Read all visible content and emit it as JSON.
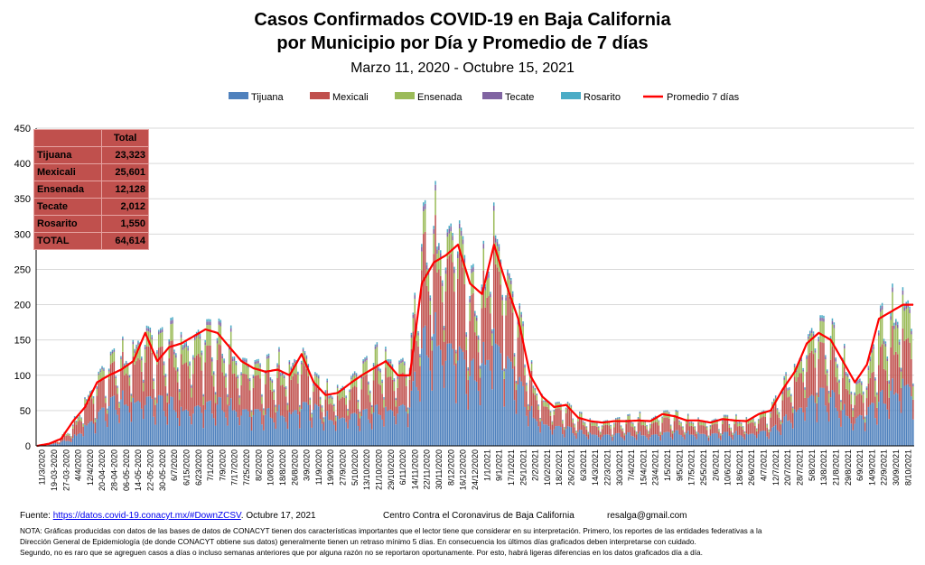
{
  "chart_data": {
    "type": "bar",
    "stacked": true,
    "title_line1": "Casos Confirmados COVID-19 en Baja California",
    "title_line2": "por Municipio por Día y Promedio de 7 días",
    "subtitle": "Marzo 11, 2020  - Octubre 15, 2021",
    "ylim": [
      0,
      450
    ],
    "yticks": [
      "0",
      "50",
      "100",
      "150",
      "200",
      "250",
      "300",
      "350",
      "400",
      "450"
    ],
    "grid": true,
    "legend_placement": "top",
    "x_tick_labels": [
      "11/3/2020",
      "19-03-2020",
      "27-03-2020",
      "4/4/2020",
      "12/4/2020",
      "20-04-2020",
      "28-04-2020",
      "06-05-2020",
      "14-05-2020",
      "22-05-2020",
      "30-05-2020",
      "6/7/2020",
      "6/15/2020",
      "6/23/2020",
      "7/1/2020",
      "7/9/2020",
      "7/17/2020",
      "7/25/2020",
      "8/2/2020",
      "10/8/2020",
      "18/8/2020",
      "26/8/2020",
      "3/9/2020",
      "11/9/2020",
      "19/9/2020",
      "27/9/2020",
      "5/10/2020",
      "13/10/2020",
      "21/10/2020",
      "29/10/2020",
      "6/11/2020",
      "14/11/2020",
      "22/11/2020",
      "30/11/2020",
      "8/12/2020",
      "16/12/2020",
      "24/12/2020",
      "1/1/2021",
      "9/1/2021",
      "17/1/2021",
      "25/1/2021",
      "2/2/2021",
      "10/2/2021",
      "18/2/2021",
      "26/2/2021",
      "6/3/2021",
      "14/3/2021",
      "22/3/2021",
      "30/3/2021",
      "7/4/2021",
      "15/4/2021",
      "23/4/2021",
      "1/5/2021",
      "9/5/2021",
      "17/5/2021",
      "25/5/2021",
      "2/6/2021",
      "10/6/2021",
      "18/6/2021",
      "26/6/2021",
      "4/7/2021",
      "12/7/2021",
      "20/7/2021",
      "28/7/2021",
      "5/8/2021",
      "13/8/2021",
      "21/8/2021",
      "29/8/2021",
      "6/9/2021",
      "14/9/2021",
      "22/9/2021",
      "30/9/2021",
      "8/10/2021"
    ],
    "series": [
      {
        "name": "Tijuana",
        "color": "#4f81bd",
        "weekly_values": [
          0,
          1,
          5,
          10,
          25,
          40,
          55,
          60,
          58,
          62,
          60,
          55,
          48,
          50,
          52,
          55,
          50,
          48,
          45,
          42,
          44,
          40,
          55,
          50,
          38,
          36,
          40,
          42,
          44,
          48,
          50,
          55,
          130,
          140,
          135,
          125,
          95,
          105,
          140,
          115,
          85,
          45,
          30,
          25,
          24,
          18,
          16,
          14,
          15,
          15,
          15,
          14,
          16,
          18,
          16,
          16,
          15,
          16,
          16,
          15,
          18,
          20,
          30,
          45,
          60,
          70,
          65,
          45,
          35,
          45,
          60,
          70,
          80
        ]
      },
      {
        "name": "Mexicali",
        "color": "#c0504d",
        "weekly_values": [
          0,
          1,
          5,
          12,
          25,
          35,
          38,
          40,
          50,
          65,
          55,
          60,
          65,
          62,
          68,
          60,
          52,
          48,
          40,
          42,
          42,
          45,
          52,
          25,
          22,
          25,
          30,
          38,
          42,
          48,
          40,
          40,
          105,
          100,
          110,
          120,
          75,
          70,
          110,
          80,
          65,
          40,
          25,
          22,
          22,
          14,
          12,
          12,
          12,
          14,
          14,
          14,
          18,
          16,
          12,
          12,
          10,
          14,
          12,
          14,
          16,
          20,
          30,
          40,
          55,
          55,
          50,
          40,
          30,
          25,
          50,
          55,
          60
        ]
      },
      {
        "name": "Ensenada",
        "color": "#9bbb59",
        "weekly_values": [
          0,
          0,
          1,
          3,
          6,
          10,
          10,
          12,
          15,
          20,
          15,
          18,
          20,
          22,
          25,
          22,
          18,
          16,
          14,
          14,
          14,
          12,
          15,
          8,
          8,
          9,
          12,
          15,
          18,
          20,
          14,
          12,
          25,
          25,
          28,
          30,
          25,
          22,
          30,
          22,
          18,
          8,
          6,
          6,
          6,
          4,
          4,
          4,
          4,
          4,
          5,
          5,
          7,
          6,
          4,
          4,
          4,
          4,
          4,
          4,
          5,
          6,
          8,
          12,
          20,
          25,
          25,
          20,
          15,
          12,
          40,
          35,
          40
        ]
      },
      {
        "name": "Tecate",
        "color": "#8064a2",
        "weekly_values": [
          0,
          0,
          0,
          1,
          1,
          2,
          2,
          2,
          3,
          4,
          3,
          4,
          4,
          4,
          4,
          4,
          4,
          3,
          3,
          3,
          3,
          3,
          3,
          2,
          2,
          2,
          2,
          3,
          3,
          3,
          3,
          3,
          6,
          6,
          6,
          6,
          5,
          5,
          6,
          5,
          4,
          2,
          1,
          1,
          1,
          1,
          1,
          1,
          1,
          1,
          1,
          1,
          1,
          1,
          1,
          1,
          1,
          1,
          1,
          1,
          1,
          1,
          2,
          2,
          3,
          4,
          4,
          3,
          3,
          3,
          4,
          5,
          5
        ]
      },
      {
        "name": "Rosarito",
        "color": "#4bacc6",
        "weekly_values": [
          0,
          0,
          0,
          1,
          1,
          2,
          2,
          2,
          2,
          3,
          2,
          3,
          3,
          3,
          3,
          3,
          3,
          2,
          2,
          2,
          2,
          2,
          2,
          2,
          2,
          2,
          2,
          2,
          2,
          3,
          2,
          2,
          4,
          4,
          4,
          4,
          4,
          3,
          4,
          3,
          3,
          2,
          1,
          1,
          1,
          1,
          1,
          1,
          1,
          1,
          1,
          1,
          1,
          1,
          1,
          1,
          1,
          1,
          1,
          1,
          1,
          1,
          2,
          2,
          3,
          3,
          3,
          2,
          2,
          2,
          3,
          4,
          4
        ]
      },
      {
        "name": "Promedio 7 días",
        "color": "#ff0000",
        "line": true,
        "weekly_values": [
          0,
          3,
          10,
          35,
          55,
          90,
          100,
          108,
          120,
          160,
          120,
          140,
          145,
          155,
          165,
          160,
          140,
          120,
          110,
          105,
          108,
          100,
          130,
          90,
          72,
          75,
          88,
          100,
          110,
          120,
          100,
          100,
          230,
          260,
          270,
          285,
          230,
          215,
          285,
          230,
          180,
          100,
          70,
          55,
          58,
          40,
          35,
          33,
          35,
          35,
          36,
          35,
          45,
          42,
          36,
          36,
          33,
          38,
          36,
          35,
          45,
          50,
          80,
          105,
          145,
          160,
          150,
          120,
          90,
          115,
          180,
          190,
          200
        ]
      }
    ],
    "totals_table": {
      "header": "Total",
      "rows": [
        {
          "label": "Tijuana",
          "value": "23,323"
        },
        {
          "label": "Mexicali",
          "value": "25,601"
        },
        {
          "label": "Ensenada",
          "value": "12,128"
        },
        {
          "label": "Tecate",
          "value": "2,012"
        },
        {
          "label": "Rosarito",
          "value": "1,550"
        },
        {
          "label": "TOTAL",
          "value": "64,614"
        }
      ]
    }
  },
  "footer": {
    "source_label": "Fuente:",
    "source_link": "https://datos.covid-19.conacyt.mx/#DownZCSV",
    "source_date": ".  Octubre 17, 2021",
    "center": "Centro Contra el Coronavirus de Baja California",
    "email": "resalga@gmail.com",
    "note_line1": "NOTA: Gráficas producidas con datos de las bases de datos de CONACYT tienen dos características importantes que el lector tiene que considerar en su interpretación.  Primero, los reportes de las entidades federativas a la",
    "note_line2": "Dirección General de Epidemiología (de donde CONACYT obtiene sus datos) generalmente tienen un retraso mínimo 5 días. En consecuencia los últimos días graficados deben interpretarse con cuidado.",
    "note_line3": "Segundo, no es raro que se agreguen casos a días o incluso semanas anteriores que por alguna razón no se reportaron oportunamente.  Por esto, habrá ligeras diferencias en los datos  graficados día a día."
  }
}
